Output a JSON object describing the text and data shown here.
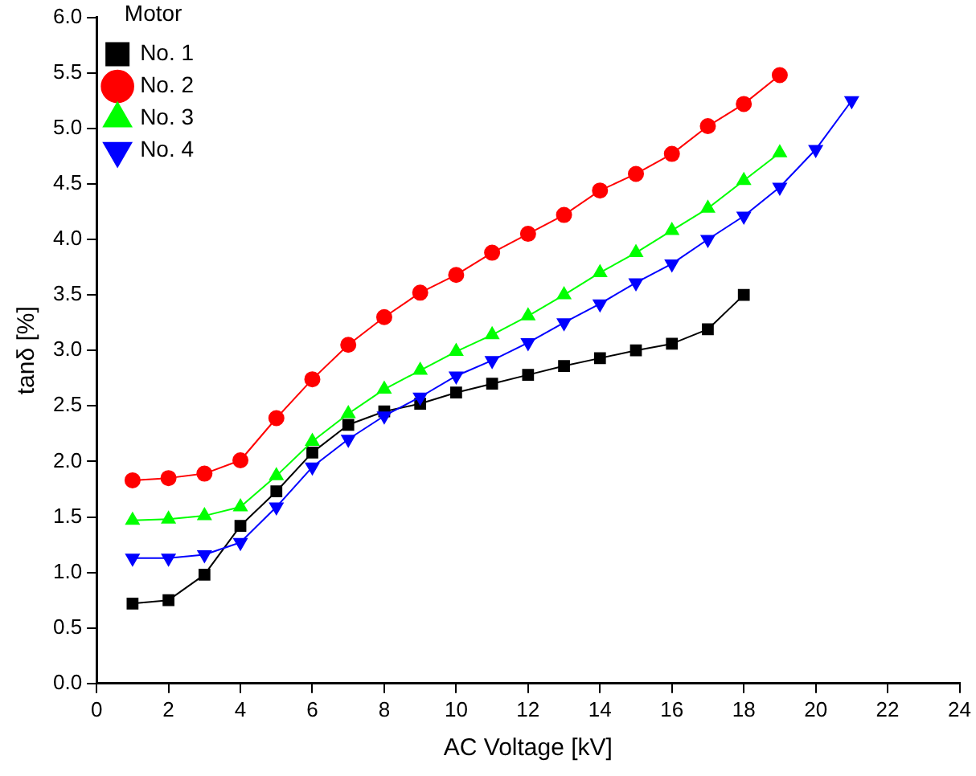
{
  "chart_data": {
    "type": "line",
    "xlabel": "AC Voltage [kV]",
    "ylabel": "tanδ [%]",
    "legend_title": "Motor",
    "legend": "top left",
    "grid": false,
    "xlim": [
      0,
      24
    ],
    "xticks": [
      0,
      2,
      4,
      6,
      8,
      10,
      12,
      14,
      16,
      18,
      20,
      22,
      24
    ],
    "ylim": [
      0,
      6
    ],
    "yticks": [
      {
        "value": 0,
        "label": "0.0"
      },
      {
        "value": 0.5,
        "label": "0.5"
      },
      {
        "value": 1,
        "label": "1.0"
      },
      {
        "value": 1.5,
        "label": "1.5"
      },
      {
        "value": 2,
        "label": "2.0"
      },
      {
        "value": 2.5,
        "label": "2.5"
      },
      {
        "value": 3,
        "label": "3.0"
      },
      {
        "value": 3.5,
        "label": "3.5"
      },
      {
        "value": 4,
        "label": "4.0"
      },
      {
        "value": 4.5,
        "label": "4.5"
      },
      {
        "value": 5,
        "label": "5.0"
      },
      {
        "value": 5.5,
        "label": "5.5"
      },
      {
        "value": 6,
        "label": "6.0"
      }
    ],
    "series": [
      {
        "name": "No. 1",
        "color": "#000000",
        "marker": "square",
        "x": [
          1,
          2,
          3,
          4,
          5,
          6,
          7,
          8,
          9,
          10,
          11,
          12,
          13,
          14,
          15,
          16,
          17,
          18
        ],
        "values": [
          0.72,
          0.75,
          0.98,
          1.42,
          1.73,
          2.08,
          2.33,
          2.45,
          2.52,
          2.62,
          2.7,
          2.78,
          2.86,
          2.93,
          3.0,
          3.06,
          3.19,
          3.5
        ]
      },
      {
        "name": "No. 2",
        "color": "#ff0000",
        "marker": "circle",
        "x": [
          1,
          2,
          3,
          4,
          5,
          6,
          7,
          8,
          9,
          10,
          11,
          12,
          13,
          14,
          15,
          16,
          17,
          18,
          19
        ],
        "values": [
          1.83,
          1.85,
          1.89,
          2.01,
          2.39,
          2.74,
          3.05,
          3.3,
          3.52,
          3.68,
          3.88,
          4.05,
          4.22,
          4.44,
          4.59,
          4.77,
          5.02,
          5.22,
          5.48
        ]
      },
      {
        "name": "No. 3",
        "color": "#00ff00",
        "marker": "triangle",
        "x": [
          1,
          2,
          3,
          4,
          5,
          6,
          7,
          8,
          9,
          10,
          11,
          12,
          13,
          14,
          15,
          16,
          17,
          18,
          19
        ],
        "values": [
          1.47,
          1.48,
          1.51,
          1.59,
          1.87,
          2.18,
          2.43,
          2.65,
          2.82,
          2.99,
          3.14,
          3.31,
          3.5,
          3.7,
          3.88,
          4.08,
          4.28,
          4.53,
          4.78
        ]
      },
      {
        "name": "No. 4",
        "color": "#0000ff",
        "marker": "triangle-down",
        "x": [
          1,
          2,
          3,
          4,
          5,
          6,
          7,
          8,
          9,
          10,
          11,
          12,
          13,
          14,
          15,
          16,
          17,
          18,
          19,
          20,
          21
        ],
        "values": [
          1.13,
          1.13,
          1.16,
          1.27,
          1.59,
          1.95,
          2.2,
          2.41,
          2.58,
          2.77,
          2.91,
          3.07,
          3.25,
          3.42,
          3.61,
          3.78,
          4.0,
          4.21,
          4.47,
          4.81,
          5.25
        ]
      }
    ]
  }
}
